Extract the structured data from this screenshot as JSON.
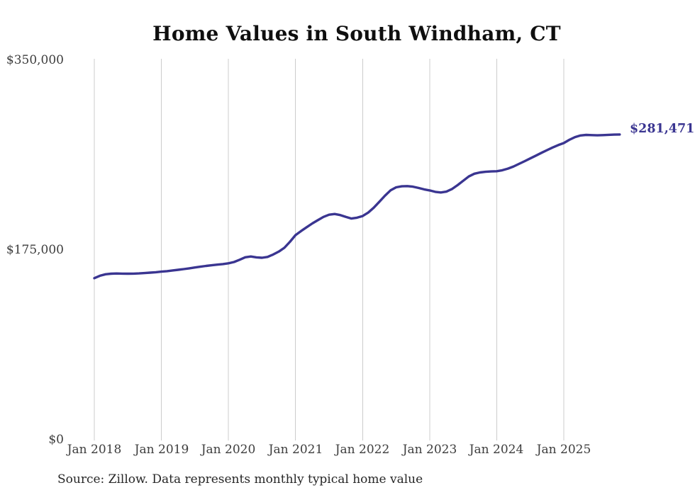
{
  "page": {
    "title": "Home Values in South Windham, CT",
    "end_value_label": "$281,471",
    "source_note": "Source: Zillow. Data represents monthly typical home value"
  },
  "colors": {
    "line": "#3a3591",
    "grid": "#cccccc",
    "axis_text": "#3d3d3d",
    "title_text": "#0f0f0f",
    "source_text": "#262626",
    "background": "#ffffff"
  },
  "chart_data": {
    "type": "line",
    "title": "Home Values in South Windham, CT",
    "xlabel": "",
    "ylabel": "",
    "ylim": [
      0,
      350000
    ],
    "ytick_labels": [
      "$350,000",
      "$175,000",
      "$0"
    ],
    "ytick_values": [
      350000,
      175000,
      0
    ],
    "xtick_labels": [
      "Jan 2018",
      "Jan 2019",
      "Jan 2020",
      "Jan 2021",
      "Jan 2022",
      "Jan 2023",
      "Jan 2024",
      "Jan 2025"
    ],
    "grid": "vertical-only",
    "legend": "none",
    "x_cadence": "monthly",
    "x_start": "2018-01",
    "x_end": "2025-11",
    "final_value": 281471,
    "end_label": "$281,471",
    "x": [
      "2018-01",
      "2018-02",
      "2018-03",
      "2018-04",
      "2018-05",
      "2018-06",
      "2018-07",
      "2018-08",
      "2018-09",
      "2018-10",
      "2018-11",
      "2018-12",
      "2019-01",
      "2019-02",
      "2019-03",
      "2019-04",
      "2019-05",
      "2019-06",
      "2019-07",
      "2019-08",
      "2019-09",
      "2019-10",
      "2019-11",
      "2019-12",
      "2020-01",
      "2020-02",
      "2020-03",
      "2020-04",
      "2020-05",
      "2020-06",
      "2020-07",
      "2020-08",
      "2020-09",
      "2020-10",
      "2020-11",
      "2020-12",
      "2021-01",
      "2021-02",
      "2021-03",
      "2021-04",
      "2021-05",
      "2021-06",
      "2021-07",
      "2021-08",
      "2021-09",
      "2021-10",
      "2021-11",
      "2021-12",
      "2022-01",
      "2022-02",
      "2022-03",
      "2022-04",
      "2022-05",
      "2022-06",
      "2022-07",
      "2022-08",
      "2022-09",
      "2022-10",
      "2022-11",
      "2022-12",
      "2023-01",
      "2023-02",
      "2023-03",
      "2023-04",
      "2023-05",
      "2023-06",
      "2023-07",
      "2023-08",
      "2023-09",
      "2023-10",
      "2023-11",
      "2023-12",
      "2024-01",
      "2024-02",
      "2024-03",
      "2024-04",
      "2024-05",
      "2024-06",
      "2024-07",
      "2024-08",
      "2024-09",
      "2024-10",
      "2024-11",
      "2024-12",
      "2025-01",
      "2025-02",
      "2025-03",
      "2025-04",
      "2025-05",
      "2025-06",
      "2025-07",
      "2025-08",
      "2025-09",
      "2025-10",
      "2025-11"
    ],
    "series": [
      {
        "name": "Typical home value",
        "values": [
          149000,
          151200,
          152600,
          153100,
          153300,
          153200,
          153100,
          153200,
          153400,
          153700,
          154100,
          154500,
          155000,
          155500,
          156100,
          156700,
          157400,
          158100,
          158900,
          159600,
          160300,
          160900,
          161500,
          162000,
          162700,
          163900,
          166000,
          168300,
          169000,
          168200,
          167800,
          168600,
          170800,
          173500,
          177000,
          182500,
          188700,
          192500,
          196000,
          199500,
          202500,
          205500,
          207500,
          208200,
          207200,
          205500,
          204000,
          204800,
          206300,
          209500,
          214000,
          219500,
          225000,
          230000,
          232800,
          233700,
          233900,
          233400,
          232200,
          230900,
          229900,
          228600,
          228000,
          228800,
          231200,
          234800,
          238800,
          242800,
          245300,
          246500,
          247100,
          247400,
          247600,
          248500,
          250000,
          252000,
          254400,
          256900,
          259400,
          262000,
          264600,
          267100,
          269500,
          271700,
          273600,
          276600,
          279100,
          280600,
          281100,
          280900,
          280700,
          280900,
          281200,
          281400,
          281471
        ]
      }
    ]
  }
}
